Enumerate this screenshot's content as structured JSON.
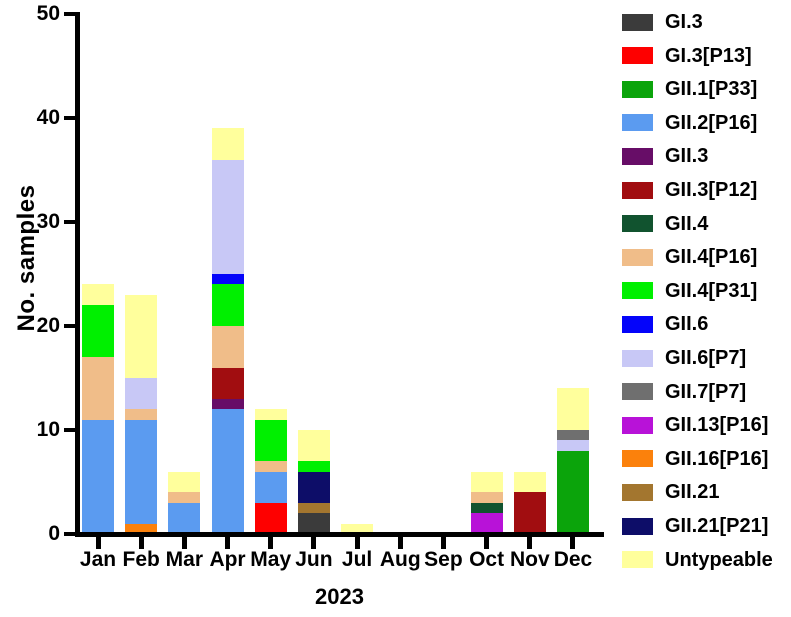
{
  "chart_data": {
    "type": "bar",
    "stacked": true,
    "title": "",
    "xlabel": "2023",
    "ylabel": "No. samples",
    "ylim": [
      0,
      50
    ],
    "yticks": [
      0,
      10,
      20,
      30,
      40,
      50
    ],
    "grid": false,
    "legend_position": "right",
    "categories": [
      "Jan",
      "Feb",
      "Mar",
      "Apr",
      "May",
      "Jun",
      "Jul",
      "Aug",
      "Sep",
      "Oct",
      "Nov",
      "Dec"
    ],
    "totals": [
      24,
      23,
      6,
      39,
      12,
      10,
      1,
      0,
      0,
      6,
      6,
      14
    ],
    "series": [
      {
        "name": "GI.3",
        "color": "#3b3b3b",
        "values": [
          0,
          0,
          0,
          0,
          0,
          2,
          0,
          0,
          0,
          0,
          0,
          0
        ]
      },
      {
        "name": "GI.3[P13]",
        "color": "#fe0000",
        "values": [
          0,
          0,
          0,
          0,
          3,
          0,
          0,
          0,
          0,
          0,
          0,
          0
        ]
      },
      {
        "name": "GII.1[P33]",
        "color": "#0ba40b",
        "values": [
          0,
          0,
          0,
          0,
          0,
          0,
          0,
          0,
          0,
          0,
          0,
          8
        ]
      },
      {
        "name": "GII.2[P16]",
        "color": "#5b9bf0",
        "values": [
          11,
          10,
          3,
          12,
          3,
          0,
          0,
          0,
          0,
          0,
          0,
          0
        ]
      },
      {
        "name": "GII.3",
        "color": "#670d67",
        "values": [
          0,
          0,
          0,
          1,
          0,
          0,
          0,
          0,
          0,
          0,
          0,
          0
        ]
      },
      {
        "name": "GII.3[P12]",
        "color": "#a10d10",
        "values": [
          0,
          0,
          0,
          3,
          0,
          0,
          0,
          0,
          0,
          0,
          4,
          0
        ]
      },
      {
        "name": "GII.4",
        "color": "#11532f",
        "values": [
          0,
          0,
          0,
          0,
          0,
          0,
          0,
          0,
          0,
          1,
          0,
          0
        ]
      },
      {
        "name": "GII.4[P16]",
        "color": "#f0bd89",
        "values": [
          6,
          1,
          1,
          4,
          1,
          0,
          0,
          0,
          0,
          1,
          0,
          0
        ]
      },
      {
        "name": "GII.4[P31]",
        "color": "#00f000",
        "values": [
          5,
          0,
          0,
          4,
          4,
          1,
          0,
          0,
          0,
          0,
          0,
          0
        ]
      },
      {
        "name": "GII.6",
        "color": "#0404fa",
        "values": [
          0,
          0,
          0,
          1,
          0,
          0,
          0,
          0,
          0,
          0,
          0,
          0
        ]
      },
      {
        "name": "GII.6[P7]",
        "color": "#c8c8f6",
        "values": [
          0,
          3,
          0,
          11,
          0,
          0,
          0,
          0,
          0,
          0,
          0,
          1
        ]
      },
      {
        "name": "GII.7[P7]",
        "color": "#6f6f6f",
        "values": [
          0,
          0,
          0,
          0,
          0,
          0,
          0,
          0,
          0,
          0,
          0,
          1
        ]
      },
      {
        "name": "GII.13[P16]",
        "color": "#b812d8",
        "values": [
          0,
          0,
          0,
          0,
          0,
          0,
          0,
          0,
          0,
          2,
          0,
          0
        ]
      },
      {
        "name": "GII.16[P16]",
        "color": "#fb810c",
        "values": [
          0,
          1,
          0,
          0,
          0,
          0,
          0,
          0,
          0,
          0,
          0,
          0
        ]
      },
      {
        "name": "GII.21",
        "color": "#a3762f",
        "values": [
          0,
          0,
          0,
          0,
          0,
          1,
          0,
          0,
          0,
          0,
          0,
          0
        ]
      },
      {
        "name": "GII.21[P21]",
        "color": "#0d0d68",
        "values": [
          0,
          0,
          0,
          0,
          0,
          3,
          0,
          0,
          0,
          0,
          0,
          0
        ]
      },
      {
        "name": "Untypeable",
        "color": "#ffff9c",
        "values": [
          2,
          8,
          2,
          3,
          1,
          3,
          1,
          0,
          0,
          2,
          2,
          4
        ]
      }
    ],
    "bars": [
      {
        "month": "Jan",
        "segments": [
          {
            "name": "GII.2[P16]",
            "value": 11
          },
          {
            "name": "GII.4[P16]",
            "value": 6
          },
          {
            "name": "GII.4[P31]",
            "value": 5
          },
          {
            "name": "Untypeable",
            "value": 2
          }
        ]
      },
      {
        "month": "Feb",
        "segments": [
          {
            "name": "GII.16[P16]",
            "value": 1
          },
          {
            "name": "GII.2[P16]",
            "value": 10
          },
          {
            "name": "GII.4[P16]",
            "value": 1
          },
          {
            "name": "GII.6[P7]",
            "value": 3
          },
          {
            "name": "Untypeable",
            "value": 8
          }
        ]
      },
      {
        "month": "Mar",
        "segments": [
          {
            "name": "GII.2[P16]",
            "value": 3
          },
          {
            "name": "GII.4[P16]",
            "value": 1
          },
          {
            "name": "Untypeable",
            "value": 2
          }
        ]
      },
      {
        "month": "Apr",
        "segments": [
          {
            "name": "GII.2[P16]",
            "value": 12
          },
          {
            "name": "GII.3",
            "value": 1
          },
          {
            "name": "GII.3[P12]",
            "value": 3
          },
          {
            "name": "GII.4[P16]",
            "value": 4
          },
          {
            "name": "GII.4[P31]",
            "value": 4
          },
          {
            "name": "GII.6",
            "value": 1
          },
          {
            "name": "GII.6[P7]",
            "value": 11
          },
          {
            "name": "Untypeable",
            "value": 3
          }
        ]
      },
      {
        "month": "May",
        "segments": [
          {
            "name": "GI.3[P13]",
            "value": 3
          },
          {
            "name": "GII.2[P16]",
            "value": 3
          },
          {
            "name": "GII.4[P16]",
            "value": 1
          },
          {
            "name": "GII.4[P31]",
            "value": 4
          },
          {
            "name": "Untypeable",
            "value": 1
          }
        ]
      },
      {
        "month": "Jun",
        "segments": [
          {
            "name": "GI.3",
            "value": 2
          },
          {
            "name": "GII.21",
            "value": 1
          },
          {
            "name": "GII.21[P21]",
            "value": 3
          },
          {
            "name": "GII.4[P31]",
            "value": 1
          },
          {
            "name": "Untypeable",
            "value": 3
          }
        ]
      },
      {
        "month": "Jul",
        "segments": [
          {
            "name": "Untypeable",
            "value": 1
          }
        ]
      },
      {
        "month": "Aug",
        "segments": []
      },
      {
        "month": "Sep",
        "segments": []
      },
      {
        "month": "Oct",
        "segments": [
          {
            "name": "GII.13[P16]",
            "value": 2
          },
          {
            "name": "GII.4",
            "value": 1
          },
          {
            "name": "GII.4[P16]",
            "value": 1
          },
          {
            "name": "Untypeable",
            "value": 2
          }
        ]
      },
      {
        "month": "Nov",
        "segments": [
          {
            "name": "GII.3[P12]",
            "value": 4
          },
          {
            "name": "Untypeable",
            "value": 2
          }
        ]
      },
      {
        "month": "Dec",
        "segments": [
          {
            "name": "GII.1[P33]",
            "value": 8
          },
          {
            "name": "GII.6[P7]",
            "value": 1
          },
          {
            "name": "GII.7[P7]",
            "value": 1
          },
          {
            "name": "Untypeable",
            "value": 4
          }
        ]
      }
    ]
  }
}
